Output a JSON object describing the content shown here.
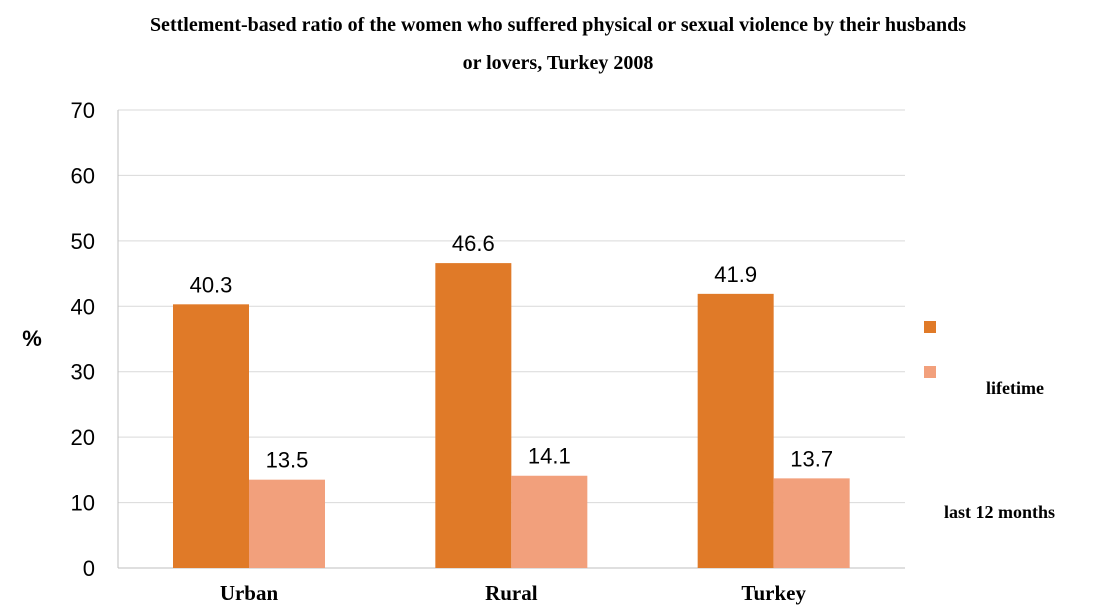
{
  "chart_data": {
    "type": "bar",
    "title_line1": "Settlement-based ratio of the women who suffered physical or sexual violence by their husbands",
    "title_line2": "or lovers, Turkey 2008",
    "ylabel": "%",
    "xlabel": "",
    "categories": [
      "Urban",
      "Rural",
      "Turkey"
    ],
    "series": [
      {
        "name": "lifetime",
        "values": [
          40.3,
          46.6,
          41.9
        ],
        "color": "#e07a28"
      },
      {
        "name": "last 12 months",
        "values": [
          13.5,
          14.1,
          13.7
        ],
        "color": "#f2a07c"
      }
    ],
    "ylim": [
      0,
      70
    ],
    "yticks": [
      0,
      10,
      20,
      30,
      40,
      50,
      60,
      70
    ],
    "grid": true,
    "legend_position": "right"
  }
}
